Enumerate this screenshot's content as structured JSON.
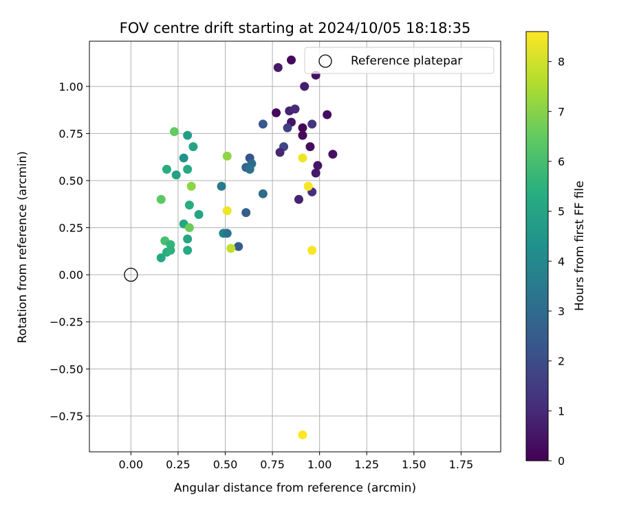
{
  "chart_data": {
    "type": "scatter",
    "title": "FOV centre drift starting at 2024/10/05 18:18:35",
    "xlabel": "Angular distance from reference (arcmin)",
    "ylabel": "Rotation from reference (arcmin)",
    "xlim": [
      -0.22,
      1.96
    ],
    "ylim": [
      -0.94,
      1.24
    ],
    "x_ticks": [
      0.0,
      0.25,
      0.5,
      0.75,
      1.0,
      1.25,
      1.5,
      1.75
    ],
    "x_tick_labels": [
      "0.00",
      "0.25",
      "0.50",
      "0.75",
      "1.00",
      "1.25",
      "1.50",
      "1.75"
    ],
    "y_ticks": [
      -0.75,
      -0.5,
      -0.25,
      0.0,
      0.25,
      0.5,
      0.75,
      1.0
    ],
    "y_tick_labels": [
      "−0.75",
      "−0.50",
      "−0.25",
      "0.00",
      "0.25",
      "0.50",
      "0.75",
      "1.00"
    ],
    "grid": true,
    "colormap": "viridis",
    "colorbar": {
      "label": "Hours from first FF file",
      "range": [
        0,
        8.6
      ],
      "ticks": [
        0,
        1,
        2,
        3,
        4,
        5,
        6,
        7,
        8
      ],
      "tick_labels": [
        "0",
        "1",
        "2",
        "3",
        "4",
        "5",
        "6",
        "7",
        "8"
      ]
    },
    "legend": {
      "placement": "upper-right",
      "entries": [
        {
          "label": "Reference platepar",
          "marker": "open-circle"
        }
      ]
    },
    "reference_point": {
      "x": 0.0,
      "y": 0.0,
      "label": "Reference platepar"
    },
    "points": [
      {
        "x": 0.85,
        "y": 1.14,
        "t": 0.2
      },
      {
        "x": 0.78,
        "y": 1.1,
        "t": 0.6
      },
      {
        "x": 0.92,
        "y": 1.0,
        "t": 0.7
      },
      {
        "x": 0.98,
        "y": 1.06,
        "t": 0.4
      },
      {
        "x": 1.04,
        "y": 0.85,
        "t": 0.3
      },
      {
        "x": 0.77,
        "y": 0.86,
        "t": 0.2
      },
      {
        "x": 0.84,
        "y": 0.87,
        "t": 0.8
      },
      {
        "x": 0.87,
        "y": 0.88,
        "t": 1.0
      },
      {
        "x": 0.7,
        "y": 0.8,
        "t": 2.4
      },
      {
        "x": 0.85,
        "y": 0.81,
        "t": 0.5
      },
      {
        "x": 0.96,
        "y": 0.8,
        "t": 1.3
      },
      {
        "x": 0.83,
        "y": 0.78,
        "t": 1.6
      },
      {
        "x": 0.91,
        "y": 0.78,
        "t": 0.1
      },
      {
        "x": 0.91,
        "y": 0.74,
        "t": 0.2
      },
      {
        "x": 0.81,
        "y": 0.68,
        "t": 1.8
      },
      {
        "x": 0.79,
        "y": 0.65,
        "t": 0.9
      },
      {
        "x": 0.95,
        "y": 0.68,
        "t": 0.3
      },
      {
        "x": 1.07,
        "y": 0.64,
        "t": 0.4
      },
      {
        "x": 0.99,
        "y": 0.58,
        "t": 0.5
      },
      {
        "x": 0.98,
        "y": 0.54,
        "t": 0.6
      },
      {
        "x": 0.96,
        "y": 0.44,
        "t": 1.1
      },
      {
        "x": 0.89,
        "y": 0.4,
        "t": 0.8
      },
      {
        "x": 0.91,
        "y": 0.62,
        "t": 8.4
      },
      {
        "x": 0.94,
        "y": 0.47,
        "t": 8.5
      },
      {
        "x": 0.96,
        "y": 0.13,
        "t": 8.5
      },
      {
        "x": 0.91,
        "y": -0.85,
        "t": 8.6
      },
      {
        "x": 0.63,
        "y": 0.62,
        "t": 2.2
      },
      {
        "x": 0.64,
        "y": 0.59,
        "t": 3.0
      },
      {
        "x": 0.61,
        "y": 0.57,
        "t": 2.8
      },
      {
        "x": 0.63,
        "y": 0.56,
        "t": 3.2
      },
      {
        "x": 0.7,
        "y": 0.43,
        "t": 3.0
      },
      {
        "x": 0.61,
        "y": 0.33,
        "t": 2.6
      },
      {
        "x": 0.48,
        "y": 0.47,
        "t": 3.5
      },
      {
        "x": 0.51,
        "y": 0.63,
        "t": 7.1
      },
      {
        "x": 0.51,
        "y": 0.34,
        "t": 8.4
      },
      {
        "x": 0.49,
        "y": 0.22,
        "t": 3.9
      },
      {
        "x": 0.51,
        "y": 0.22,
        "t": 3.2
      },
      {
        "x": 0.57,
        "y": 0.15,
        "t": 2.5
      },
      {
        "x": 0.53,
        "y": 0.14,
        "t": 7.8
      },
      {
        "x": 0.23,
        "y": 0.76,
        "t": 6.5
      },
      {
        "x": 0.3,
        "y": 0.74,
        "t": 4.8
      },
      {
        "x": 0.33,
        "y": 0.68,
        "t": 5.0
      },
      {
        "x": 0.28,
        "y": 0.62,
        "t": 4.3
      },
      {
        "x": 0.19,
        "y": 0.56,
        "t": 5.3
      },
      {
        "x": 0.3,
        "y": 0.56,
        "t": 5.2
      },
      {
        "x": 0.24,
        "y": 0.53,
        "t": 4.9
      },
      {
        "x": 0.32,
        "y": 0.47,
        "t": 7.1
      },
      {
        "x": 0.16,
        "y": 0.4,
        "t": 6.4
      },
      {
        "x": 0.31,
        "y": 0.37,
        "t": 5.3
      },
      {
        "x": 0.36,
        "y": 0.32,
        "t": 5.0
      },
      {
        "x": 0.28,
        "y": 0.27,
        "t": 5.1
      },
      {
        "x": 0.31,
        "y": 0.25,
        "t": 6.6
      },
      {
        "x": 0.18,
        "y": 0.18,
        "t": 6.0
      },
      {
        "x": 0.3,
        "y": 0.19,
        "t": 5.0
      },
      {
        "x": 0.21,
        "y": 0.16,
        "t": 5.6
      },
      {
        "x": 0.19,
        "y": 0.12,
        "t": 5.4
      },
      {
        "x": 0.21,
        "y": 0.13,
        "t": 5.5
      },
      {
        "x": 0.3,
        "y": 0.13,
        "t": 5.2
      },
      {
        "x": 0.16,
        "y": 0.09,
        "t": 5.1
      }
    ]
  }
}
